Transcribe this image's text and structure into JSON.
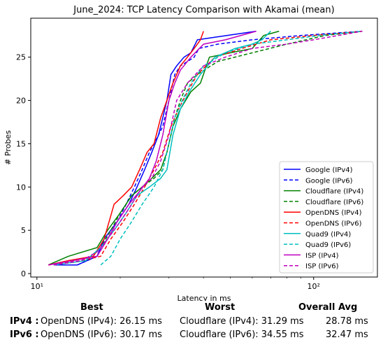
{
  "chart_data": {
    "type": "line",
    "title": "June_2024: TCP Latency Comparison with Akamai (mean)",
    "xlabel": "Latency in ms",
    "ylabel": "# Probes",
    "xscale": "log",
    "xlim": [
      9.5,
      170
    ],
    "ylim": [
      -0.4,
      29.5
    ],
    "xticks": [
      {
        "value": 10,
        "label": "10¹"
      },
      {
        "value": 100,
        "label": "10²"
      }
    ],
    "yticks": [
      0,
      5,
      10,
      15,
      20,
      25
    ],
    "grid": false,
    "legend_position": "lower-right",
    "series": [
      {
        "name": "Google (IPv4)",
        "color": "#0000ff",
        "dash": "solid",
        "x": [
          11.5,
          14.0,
          16.5,
          17.5,
          19.5,
          21.5,
          23.0,
          24.5,
          26.0,
          27.5,
          28.5,
          29.5,
          30.5,
          32.0,
          34.0,
          36.0,
          38.0,
          62.0
        ],
        "y": [
          1,
          1,
          2,
          4,
          6,
          8,
          10,
          12,
          14,
          16,
          18,
          20,
          23,
          24,
          25,
          25.5,
          27,
          28
        ]
      },
      {
        "name": "Google (IPv6)",
        "color": "#0000ff",
        "dash": "dashed",
        "x": [
          14.0,
          16.5,
          18.0,
          19.5,
          21.0,
          22.5,
          24.0,
          25.5,
          27.0,
          28.5,
          30.0,
          31.5,
          33.0,
          35.0,
          37.0,
          38.5,
          45.0,
          60.0,
          90.0,
          150.0
        ],
        "y": [
          1,
          2,
          4,
          6,
          8,
          10,
          12,
          14,
          15.5,
          17,
          20,
          23,
          24,
          24.5,
          25,
          26,
          26.5,
          27,
          27.5,
          28
        ]
      },
      {
        "name": "Cloudflare (IPv4)",
        "color": "#008000",
        "dash": "solid",
        "x": [
          11.0,
          13.0,
          16.5,
          18.0,
          20.0,
          22.0,
          24.0,
          26.0,
          28.0,
          29.5,
          31.0,
          33.0,
          36.0,
          39.0,
          42.0,
          50.0,
          60.0,
          66.0,
          75.0
        ],
        "y": [
          1,
          2,
          3,
          5,
          7,
          9,
          10,
          11,
          12,
          14,
          17,
          19,
          21,
          22,
          25,
          25.5,
          26,
          27.5,
          28
        ]
      },
      {
        "name": "Cloudflare (IPv6)",
        "color": "#008000",
        "dash": "dashed",
        "x": [
          11.5,
          15.0,
          17.0,
          18.5,
          20.0,
          22.0,
          24.0,
          26.5,
          28.5,
          30.0,
          31.5,
          33.0,
          35.0,
          38.0,
          45.0,
          60.0,
          80.0,
          110.0,
          150.0
        ],
        "y": [
          1,
          1.5,
          3,
          5,
          7,
          9,
          10,
          11,
          12,
          15,
          18,
          20,
          22,
          23,
          24.5,
          25.5,
          26.5,
          27.5,
          28
        ]
      },
      {
        "name": "OpenDNS (IPv4)",
        "color": "#ff0000",
        "dash": "solid",
        "x": [
          11.0,
          13.0,
          16.0,
          17.5,
          19.0,
          20.5,
          22.0,
          23.5,
          25.0,
          26.5,
          28.0,
          29.5,
          31.0,
          33.0,
          35.0,
          37.0,
          39.0,
          40.0
        ],
        "y": [
          1,
          1.5,
          2,
          4,
          8,
          9,
          10,
          12,
          14,
          15,
          18,
          20,
          22,
          24,
          25,
          26,
          27,
          28
        ]
      },
      {
        "name": "OpenDNS (IPv6)",
        "color": "#ff0000",
        "dash": "dashed",
        "x": [
          11.0,
          14.5,
          17.0,
          18.5,
          20.5,
          22.5,
          24.5,
          26.5,
          28.5,
          30.5,
          32.5,
          35.0,
          38.0,
          44.0,
          55.0,
          70.0,
          100.0,
          130.0,
          150.0
        ],
        "y": [
          1,
          1.5,
          2,
          4,
          6,
          8,
          10,
          12,
          14,
          17,
          19,
          21,
          23,
          25,
          26,
          27,
          27.5,
          27.8,
          28
        ]
      },
      {
        "name": "Quad9 (IPv4)",
        "color": "#00bfbf",
        "dash": "solid",
        "x": [
          11.5,
          15.0,
          17.0,
          19.0,
          21.0,
          23.0,
          25.5,
          28.0,
          29.5,
          31.0,
          33.0,
          35.5,
          39.0,
          44.0,
          52.0,
          60.0,
          65.0,
          70.0
        ],
        "y": [
          1,
          1.5,
          3,
          5,
          7,
          9,
          10,
          11,
          12,
          16,
          19,
          21,
          23,
          25,
          26,
          26.5,
          27,
          28
        ]
      },
      {
        "name": "Quad9 (IPv6)",
        "color": "#00bfbf",
        "dash": "dashed",
        "x": [
          17.0,
          18.5,
          20.0,
          22.0,
          24.0,
          26.5,
          28.5,
          30.0,
          31.5,
          33.5,
          36.0,
          40.0,
          48.0,
          60.0,
          80.0,
          105.0,
          150.0
        ],
        "y": [
          1,
          2,
          4,
          6,
          8,
          10,
          12,
          15,
          18,
          20,
          22,
          24,
          25.5,
          26.5,
          27,
          27.5,
          28
        ]
      },
      {
        "name": "ISP (IPv4)",
        "color": "#bf00bf",
        "dash": "solid",
        "x": [
          11.0,
          13.5,
          16.5,
          18.0,
          19.5,
          21.5,
          23.5,
          25.5,
          27.0,
          28.5,
          30.0,
          31.5,
          33.0,
          36.0,
          40.0,
          48.0,
          62.0
        ],
        "y": [
          1,
          1.5,
          2,
          4,
          6,
          8,
          9.5,
          11,
          13,
          16,
          20,
          22,
          23.5,
          25,
          26.5,
          27,
          28
        ]
      },
      {
        "name": "ISP (IPv6)",
        "color": "#bf00bf",
        "dash": "dashed",
        "x": [
          11.5,
          14.5,
          16.5,
          18.0,
          20.0,
          22.0,
          24.0,
          26.0,
          28.0,
          30.0,
          32.0,
          35.0,
          40.0,
          48.0,
          60.0,
          80.0,
          100.0,
          150.0
        ],
        "y": [
          1,
          1.5,
          2.5,
          4,
          6,
          8,
          10,
          11,
          13,
          16,
          20,
          22,
          24,
          25,
          26,
          26.5,
          27,
          28
        ]
      }
    ]
  },
  "summary": {
    "headers": {
      "best": "Best",
      "worst": "Worst",
      "overall": "Overall Avg"
    },
    "rows": [
      {
        "label": "IPv4 :",
        "best": "OpenDNS (IPv4): 26.15 ms",
        "worst": "Cloudflare (IPv4): 31.29 ms",
        "overall": "28.78 ms"
      },
      {
        "label": "IPv6 :",
        "best": "OpenDNS (IPv6): 30.17 ms",
        "worst": "Cloudflare (IPv6): 34.55 ms",
        "overall": "32.47 ms"
      }
    ]
  }
}
